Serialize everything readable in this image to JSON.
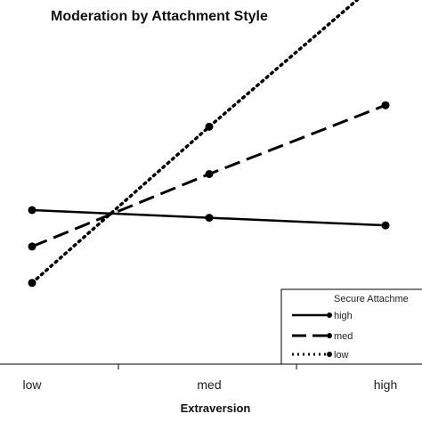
{
  "chart_data": {
    "type": "line",
    "title": "Moderation by  Attachment Style",
    "xlabel": "Extraversion",
    "ylabel": "",
    "categories": [
      "low",
      "med",
      "high"
    ],
    "ylim": [
      0,
      100
    ],
    "grid": false,
    "legend": {
      "title": "Secure Attachme",
      "placement": "bottom-right"
    },
    "series": [
      {
        "name": "high",
        "values": [
          42.3,
          40.2,
          38.1
        ],
        "style": "solid"
      },
      {
        "name": "med",
        "values": [
          32.3,
          52.2,
          71.1
        ],
        "style": "dashed"
      },
      {
        "name": "low",
        "values": [
          22.3,
          65.2,
          106.7
        ],
        "style": "dotted"
      }
    ]
  }
}
